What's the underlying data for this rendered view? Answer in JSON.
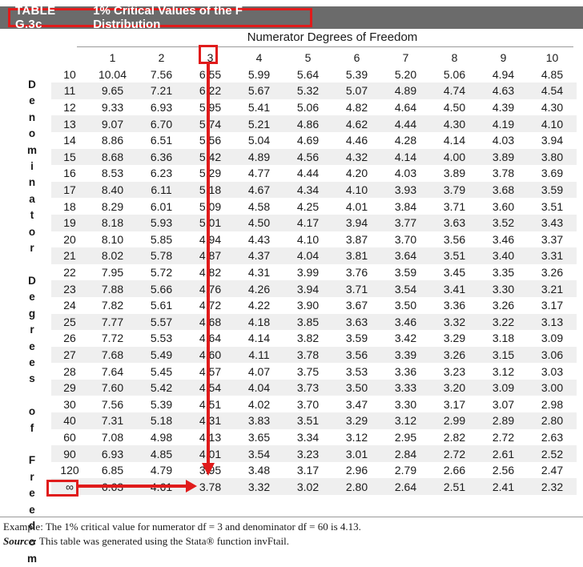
{
  "title": {
    "label": "TABLE G.3c",
    "text": "1% Critical Values of the F Distribution"
  },
  "numerator_heading": "Numerator Degrees of Freedom",
  "denominator_heading": "Denominator Degrees of Freedom",
  "columns": [
    "1",
    "2",
    "3",
    "4",
    "5",
    "6",
    "7",
    "8",
    "9",
    "10"
  ],
  "rows": [
    {
      "df": "10",
      "values": [
        "10.04",
        "7.56",
        "6.55",
        "5.99",
        "5.64",
        "5.39",
        "5.20",
        "5.06",
        "4.94",
        "4.85"
      ]
    },
    {
      "df": "11",
      "values": [
        "9.65",
        "7.21",
        "6.22",
        "5.67",
        "5.32",
        "5.07",
        "4.89",
        "4.74",
        "4.63",
        "4.54"
      ]
    },
    {
      "df": "12",
      "values": [
        "9.33",
        "6.93",
        "5.95",
        "5.41",
        "5.06",
        "4.82",
        "4.64",
        "4.50",
        "4.39",
        "4.30"
      ]
    },
    {
      "df": "13",
      "values": [
        "9.07",
        "6.70",
        "5.74",
        "5.21",
        "4.86",
        "4.62",
        "4.44",
        "4.30",
        "4.19",
        "4.10"
      ]
    },
    {
      "df": "14",
      "values": [
        "8.86",
        "6.51",
        "5.56",
        "5.04",
        "4.69",
        "4.46",
        "4.28",
        "4.14",
        "4.03",
        "3.94"
      ]
    },
    {
      "df": "15",
      "values": [
        "8.68",
        "6.36",
        "5.42",
        "4.89",
        "4.56",
        "4.32",
        "4.14",
        "4.00",
        "3.89",
        "3.80"
      ]
    },
    {
      "df": "16",
      "values": [
        "8.53",
        "6.23",
        "5.29",
        "4.77",
        "4.44",
        "4.20",
        "4.03",
        "3.89",
        "3.78",
        "3.69"
      ]
    },
    {
      "df": "17",
      "values": [
        "8.40",
        "6.11",
        "5.18",
        "4.67",
        "4.34",
        "4.10",
        "3.93",
        "3.79",
        "3.68",
        "3.59"
      ]
    },
    {
      "df": "18",
      "values": [
        "8.29",
        "6.01",
        "5.09",
        "4.58",
        "4.25",
        "4.01",
        "3.84",
        "3.71",
        "3.60",
        "3.51"
      ]
    },
    {
      "df": "19",
      "values": [
        "8.18",
        "5.93",
        "5.01",
        "4.50",
        "4.17",
        "3.94",
        "3.77",
        "3.63",
        "3.52",
        "3.43"
      ]
    },
    {
      "df": "20",
      "values": [
        "8.10",
        "5.85",
        "4.94",
        "4.43",
        "4.10",
        "3.87",
        "3.70",
        "3.56",
        "3.46",
        "3.37"
      ]
    },
    {
      "df": "21",
      "values": [
        "8.02",
        "5.78",
        "4.87",
        "4.37",
        "4.04",
        "3.81",
        "3.64",
        "3.51",
        "3.40",
        "3.31"
      ]
    },
    {
      "df": "22",
      "values": [
        "7.95",
        "5.72",
        "4.82",
        "4.31",
        "3.99",
        "3.76",
        "3.59",
        "3.45",
        "3.35",
        "3.26"
      ]
    },
    {
      "df": "23",
      "values": [
        "7.88",
        "5.66",
        "4.76",
        "4.26",
        "3.94",
        "3.71",
        "3.54",
        "3.41",
        "3.30",
        "3.21"
      ]
    },
    {
      "df": "24",
      "values": [
        "7.82",
        "5.61",
        "4.72",
        "4.22",
        "3.90",
        "3.67",
        "3.50",
        "3.36",
        "3.26",
        "3.17"
      ]
    },
    {
      "df": "25",
      "values": [
        "7.77",
        "5.57",
        "4.68",
        "4.18",
        "3.85",
        "3.63",
        "3.46",
        "3.32",
        "3.22",
        "3.13"
      ]
    },
    {
      "df": "26",
      "values": [
        "7.72",
        "5.53",
        "4.64",
        "4.14",
        "3.82",
        "3.59",
        "3.42",
        "3.29",
        "3.18",
        "3.09"
      ]
    },
    {
      "df": "27",
      "values": [
        "7.68",
        "5.49",
        "4.60",
        "4.11",
        "3.78",
        "3.56",
        "3.39",
        "3.26",
        "3.15",
        "3.06"
      ]
    },
    {
      "df": "28",
      "values": [
        "7.64",
        "5.45",
        "4.57",
        "4.07",
        "3.75",
        "3.53",
        "3.36",
        "3.23",
        "3.12",
        "3.03"
      ]
    },
    {
      "df": "29",
      "values": [
        "7.60",
        "5.42",
        "4.54",
        "4.04",
        "3.73",
        "3.50",
        "3.33",
        "3.20",
        "3.09",
        "3.00"
      ]
    },
    {
      "df": "30",
      "values": [
        "7.56",
        "5.39",
        "4.51",
        "4.02",
        "3.70",
        "3.47",
        "3.30",
        "3.17",
        "3.07",
        "2.98"
      ]
    },
    {
      "df": "40",
      "values": [
        "7.31",
        "5.18",
        "4.31",
        "3.83",
        "3.51",
        "3.29",
        "3.12",
        "2.99",
        "2.89",
        "2.80"
      ]
    },
    {
      "df": "60",
      "values": [
        "7.08",
        "4.98",
        "4.13",
        "3.65",
        "3.34",
        "3.12",
        "2.95",
        "2.82",
        "2.72",
        "2.63"
      ]
    },
    {
      "df": "90",
      "values": [
        "6.93",
        "4.85",
        "4.01",
        "3.54",
        "3.23",
        "3.01",
        "2.84",
        "2.72",
        "2.61",
        "2.52"
      ]
    },
    {
      "df": "120",
      "values": [
        "6.85",
        "4.79",
        "3.95",
        "3.48",
        "3.17",
        "2.96",
        "2.79",
        "2.66",
        "2.56",
        "2.47"
      ]
    },
    {
      "df": "∞",
      "values": [
        "6.63",
        "4.61",
        "3.78",
        "3.32",
        "3.02",
        "2.80",
        "2.64",
        "2.51",
        "2.41",
        "2.32"
      ]
    }
  ],
  "notes": {
    "example": "Example: The 1% critical value for numerator df = 3 and denominator df = 60 is 4.13.",
    "source_label": "Source:",
    "source_text": "This table was generated using the Stata® function invFtail."
  },
  "colors": {
    "highlight": "#e01b1b",
    "title_bg": "#6b6b6b",
    "row_shade": "#efefef"
  }
}
